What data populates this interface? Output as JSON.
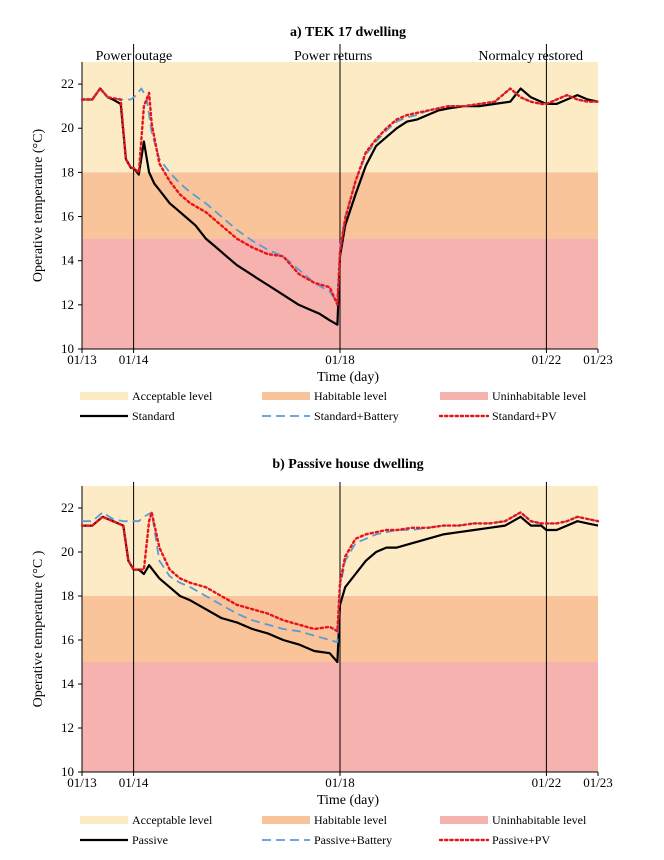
{
  "colors": {
    "acceptable": "#fdebc6",
    "habitable": "#f9c49a",
    "uninhabitable": "#f5b2ae",
    "black": "#000000",
    "blue": "#5b9bd5",
    "red": "#e8141c"
  },
  "chart_data": [
    {
      "type": "line",
      "title": "a) TEK 17 dwelling",
      "xlabel": "Time (day)",
      "ylabel": "Operative temperature (°C)",
      "ylim": [
        10,
        23
      ],
      "xlim": [
        0,
        10
      ],
      "yticks": [
        10,
        12,
        14,
        16,
        18,
        20,
        22
      ],
      "xticks": [
        {
          "x": 0,
          "label": "01/13"
        },
        {
          "x": 1,
          "label": "01/14"
        },
        {
          "x": 5,
          "label": "01/18"
        },
        {
          "x": 9,
          "label": "01/22"
        },
        {
          "x": 10,
          "label": "01/23"
        }
      ],
      "bands": [
        {
          "name": "Acceptable level",
          "from": 18,
          "to": 23,
          "color": "#fdebc6"
        },
        {
          "name": "Habitable level",
          "from": 15,
          "to": 18,
          "color": "#f9c49a"
        },
        {
          "name": "Uninhabitable level",
          "from": 10,
          "to": 15,
          "color": "#f5b2ae"
        }
      ],
      "events": [
        {
          "x": 1,
          "label": "Power outage"
        },
        {
          "x": 5,
          "label": "Power returns"
        },
        {
          "x": 9,
          "label": "Normalcy restored"
        }
      ],
      "series": [
        {
          "name": "Standard",
          "style": "solid",
          "color": "#000000",
          "x": [
            0,
            0.2,
            0.35,
            0.5,
            0.6,
            0.75,
            0.85,
            0.95,
            1.0,
            1.1,
            1.2,
            1.3,
            1.4,
            1.5,
            1.6,
            1.7,
            1.8,
            1.9,
            2.0,
            2.2,
            2.4,
            2.6,
            2.8,
            3.0,
            3.2,
            3.4,
            3.6,
            3.8,
            4.0,
            4.2,
            4.4,
            4.6,
            4.8,
            4.95,
            5.0,
            5.1,
            5.3,
            5.5,
            5.7,
            5.9,
            6.1,
            6.3,
            6.5,
            6.7,
            6.9,
            7.1,
            7.4,
            7.7,
            8.0,
            8.3,
            8.5,
            8.7,
            8.9,
            9.0,
            9.2,
            9.4,
            9.6,
            9.8,
            10
          ],
          "y": [
            21.3,
            21.3,
            21.8,
            21.4,
            21.3,
            21.1,
            18.6,
            18.2,
            18.2,
            17.9,
            19.4,
            18.0,
            17.5,
            17.2,
            16.9,
            16.6,
            16.4,
            16.2,
            16.0,
            15.6,
            15.0,
            14.6,
            14.2,
            13.8,
            13.5,
            13.2,
            12.9,
            12.6,
            12.3,
            12.0,
            11.8,
            11.6,
            11.3,
            11.1,
            14.2,
            15.6,
            17.0,
            18.3,
            19.2,
            19.6,
            20.0,
            20.3,
            20.4,
            20.6,
            20.8,
            20.9,
            21.0,
            21.0,
            21.1,
            21.2,
            21.8,
            21.4,
            21.2,
            21.1,
            21.1,
            21.3,
            21.5,
            21.3,
            21.2
          ]
        },
        {
          "name": "Standard+Battery",
          "style": "dashed",
          "color": "#5b9bd5",
          "x": [
            0,
            0.2,
            0.35,
            0.5,
            0.75,
            0.85,
            0.95,
            1.05,
            1.15,
            1.25,
            1.35,
            1.5,
            1.7,
            1.9,
            2.1,
            2.4,
            2.7,
            3.0,
            3.3,
            3.6,
            3.9,
            4.2,
            4.5,
            4.8,
            4.95,
            5.0,
            5.1,
            5.3,
            5.5,
            5.7,
            5.9,
            6.1,
            6.3,
            6.5,
            6.7,
            6.9,
            7.1,
            7.4,
            7.7,
            8.0,
            8.3,
            8.5,
            8.7,
            8.9,
            9.0,
            9.2,
            9.4,
            9.6,
            9.8,
            10
          ],
          "y": [
            21.3,
            21.3,
            21.8,
            21.4,
            21.3,
            21.3,
            21.3,
            21.5,
            21.8,
            21.4,
            19.8,
            18.6,
            18.0,
            17.5,
            17.1,
            16.6,
            16.0,
            15.4,
            14.9,
            14.5,
            14.2,
            13.6,
            13.0,
            12.6,
            12.1,
            14.6,
            16.0,
            17.6,
            18.8,
            19.4,
            19.9,
            20.3,
            20.5,
            20.6,
            20.8,
            20.9,
            21.0,
            21.0,
            21.1,
            21.2,
            21.8,
            21.4,
            21.2,
            21.1,
            21.1,
            21.3,
            21.5,
            21.3,
            21.2,
            21.2
          ]
        },
        {
          "name": "Standard+PV",
          "style": "dotted",
          "color": "#e8141c",
          "x": [
            0,
            0.2,
            0.35,
            0.5,
            0.75,
            0.85,
            0.95,
            1.0,
            1.1,
            1.2,
            1.3,
            1.35,
            1.5,
            1.7,
            1.9,
            2.1,
            2.4,
            2.7,
            3.0,
            3.3,
            3.6,
            3.9,
            4.2,
            4.5,
            4.8,
            4.95,
            5.0,
            5.1,
            5.3,
            5.5,
            5.7,
            5.9,
            6.1,
            6.3,
            6.5,
            6.7,
            6.9,
            7.1,
            7.4,
            7.7,
            8.0,
            8.3,
            8.5,
            8.7,
            8.9,
            9.0,
            9.2,
            9.4,
            9.6,
            9.8,
            10
          ],
          "y": [
            21.3,
            21.3,
            21.8,
            21.4,
            21.3,
            18.6,
            18.2,
            18.2,
            18.0,
            21.0,
            21.6,
            20.2,
            18.4,
            17.6,
            17.0,
            16.6,
            16.2,
            15.6,
            15.0,
            14.6,
            14.3,
            14.2,
            13.4,
            13.0,
            12.8,
            12.0,
            14.4,
            15.9,
            17.6,
            18.9,
            19.5,
            20.0,
            20.4,
            20.6,
            20.7,
            20.8,
            20.9,
            21.0,
            21.0,
            21.1,
            21.2,
            21.8,
            21.4,
            21.2,
            21.1,
            21.1,
            21.3,
            21.5,
            21.3,
            21.2,
            21.2
          ]
        }
      ],
      "legend": [
        {
          "label": "Acceptable level",
          "kind": "band",
          "color": "#fdebc6"
        },
        {
          "label": "Habitable level",
          "kind": "band",
          "color": "#f9c49a"
        },
        {
          "label": "Uninhabitable level",
          "kind": "band",
          "color": "#f5b2ae"
        },
        {
          "label": "Standard",
          "kind": "solid",
          "color": "#000000"
        },
        {
          "label": "Standard+Battery",
          "kind": "dashed",
          "color": "#5b9bd5"
        },
        {
          "label": "Standard+PV",
          "kind": "dotted",
          "color": "#e8141c"
        }
      ]
    },
    {
      "type": "line",
      "title": "b) Passive house dwelling",
      "xlabel": "Time (day)",
      "ylabel": "Operative temperature (°C )",
      "ylim": [
        10,
        23
      ],
      "xlim": [
        0,
        10
      ],
      "yticks": [
        10,
        12,
        14,
        16,
        18,
        20,
        22
      ],
      "xticks": [
        {
          "x": 0,
          "label": "01/13"
        },
        {
          "x": 1,
          "label": "01/14"
        },
        {
          "x": 5,
          "label": "01/18"
        },
        {
          "x": 9,
          "label": "01/22"
        },
        {
          "x": 10,
          "label": "01/23"
        }
      ],
      "bands": [
        {
          "name": "Acceptable level",
          "from": 18,
          "to": 23,
          "color": "#fdebc6"
        },
        {
          "name": "Habitable level",
          "from": 15,
          "to": 18,
          "color": "#f9c49a"
        },
        {
          "name": "Uninhabitable level",
          "from": 10,
          "to": 15,
          "color": "#f5b2ae"
        }
      ],
      "events": [
        {
          "x": 1,
          "label": ""
        },
        {
          "x": 5,
          "label": ""
        },
        {
          "x": 9,
          "label": ""
        }
      ],
      "series": [
        {
          "name": "Passive",
          "style": "solid",
          "color": "#000000",
          "x": [
            0,
            0.2,
            0.4,
            0.6,
            0.8,
            0.9,
            1.0,
            1.1,
            1.2,
            1.3,
            1.5,
            1.7,
            1.9,
            2.1,
            2.4,
            2.7,
            3.0,
            3.3,
            3.6,
            3.9,
            4.2,
            4.5,
            4.8,
            4.95,
            5.0,
            5.1,
            5.3,
            5.5,
            5.7,
            5.9,
            6.1,
            6.4,
            6.7,
            7.0,
            7.3,
            7.6,
            7.9,
            8.2,
            8.5,
            8.7,
            8.9,
            9.0,
            9.2,
            9.4,
            9.6,
            9.8,
            10
          ],
          "y": [
            21.2,
            21.2,
            21.6,
            21.4,
            21.2,
            19.6,
            19.2,
            19.2,
            19.0,
            19.4,
            18.8,
            18.4,
            18.0,
            17.8,
            17.4,
            17.0,
            16.8,
            16.5,
            16.3,
            16.0,
            15.8,
            15.5,
            15.4,
            15.0,
            17.6,
            18.4,
            19.0,
            19.6,
            20.0,
            20.2,
            20.2,
            20.4,
            20.6,
            20.8,
            20.9,
            21.0,
            21.1,
            21.2,
            21.6,
            21.2,
            21.2,
            21.0,
            21.0,
            21.2,
            21.4,
            21.3,
            21.2
          ]
        },
        {
          "name": "Passive+Battery",
          "style": "dashed",
          "color": "#5b9bd5",
          "x": [
            0,
            0.2,
            0.4,
            0.6,
            0.8,
            0.9,
            1.0,
            1.1,
            1.2,
            1.35,
            1.5,
            1.7,
            1.9,
            2.1,
            2.4,
            2.7,
            3.0,
            3.3,
            3.6,
            3.9,
            4.2,
            4.5,
            4.8,
            4.95,
            5.0,
            5.1,
            5.3,
            5.5,
            5.7,
            5.9,
            6.1,
            6.4,
            6.7,
            7.0,
            7.3,
            7.6,
            7.9,
            8.2,
            8.5,
            8.7,
            8.9,
            9.0,
            9.2,
            9.4,
            9.6,
            9.8,
            10
          ],
          "y": [
            21.4,
            21.4,
            21.8,
            21.5,
            21.4,
            21.4,
            21.4,
            21.4,
            21.6,
            21.8,
            19.6,
            18.9,
            18.6,
            18.4,
            18.0,
            17.6,
            17.2,
            16.9,
            16.7,
            16.5,
            16.4,
            16.2,
            16.0,
            15.9,
            18.4,
            19.6,
            20.4,
            20.6,
            20.8,
            20.9,
            21.0,
            21.0,
            21.1,
            21.2,
            21.2,
            21.3,
            21.3,
            21.4,
            21.8,
            21.4,
            21.3,
            21.3,
            21.3,
            21.4,
            21.6,
            21.5,
            21.4
          ]
        },
        {
          "name": "Passive+PV",
          "style": "dotted",
          "color": "#e8141c",
          "x": [
            0,
            0.2,
            0.4,
            0.6,
            0.8,
            0.9,
            1.0,
            1.1,
            1.2,
            1.3,
            1.35,
            1.5,
            1.7,
            1.9,
            2.1,
            2.4,
            2.7,
            3.0,
            3.3,
            3.6,
            3.9,
            4.2,
            4.5,
            4.8,
            4.95,
            5.0,
            5.1,
            5.3,
            5.5,
            5.7,
            5.9,
            6.1,
            6.4,
            6.7,
            7.0,
            7.3,
            7.6,
            7.9,
            8.2,
            8.5,
            8.7,
            8.9,
            9.0,
            9.2,
            9.4,
            9.6,
            9.8,
            10
          ],
          "y": [
            21.2,
            21.2,
            21.6,
            21.4,
            21.2,
            19.6,
            19.2,
            19.2,
            19.2,
            21.4,
            21.8,
            20.2,
            19.2,
            18.8,
            18.6,
            18.4,
            18.0,
            17.6,
            17.4,
            17.2,
            16.9,
            16.7,
            16.5,
            16.6,
            16.4,
            18.6,
            19.8,
            20.6,
            20.8,
            20.9,
            21.0,
            21.0,
            21.1,
            21.1,
            21.2,
            21.2,
            21.3,
            21.3,
            21.4,
            21.8,
            21.4,
            21.3,
            21.3,
            21.3,
            21.4,
            21.6,
            21.5,
            21.4
          ]
        }
      ],
      "legend": [
        {
          "label": "Acceptable level",
          "kind": "band",
          "color": "#fdebc6"
        },
        {
          "label": "Habitable level",
          "kind": "band",
          "color": "#f9c49a"
        },
        {
          "label": "Uninhabitable level",
          "kind": "band",
          "color": "#f5b2ae"
        },
        {
          "label": "Passive",
          "kind": "solid",
          "color": "#000000"
        },
        {
          "label": "Passive+Battery",
          "kind": "dashed",
          "color": "#5b9bd5"
        },
        {
          "label": "Passive+PV",
          "kind": "dotted",
          "color": "#e8141c"
        }
      ]
    }
  ]
}
